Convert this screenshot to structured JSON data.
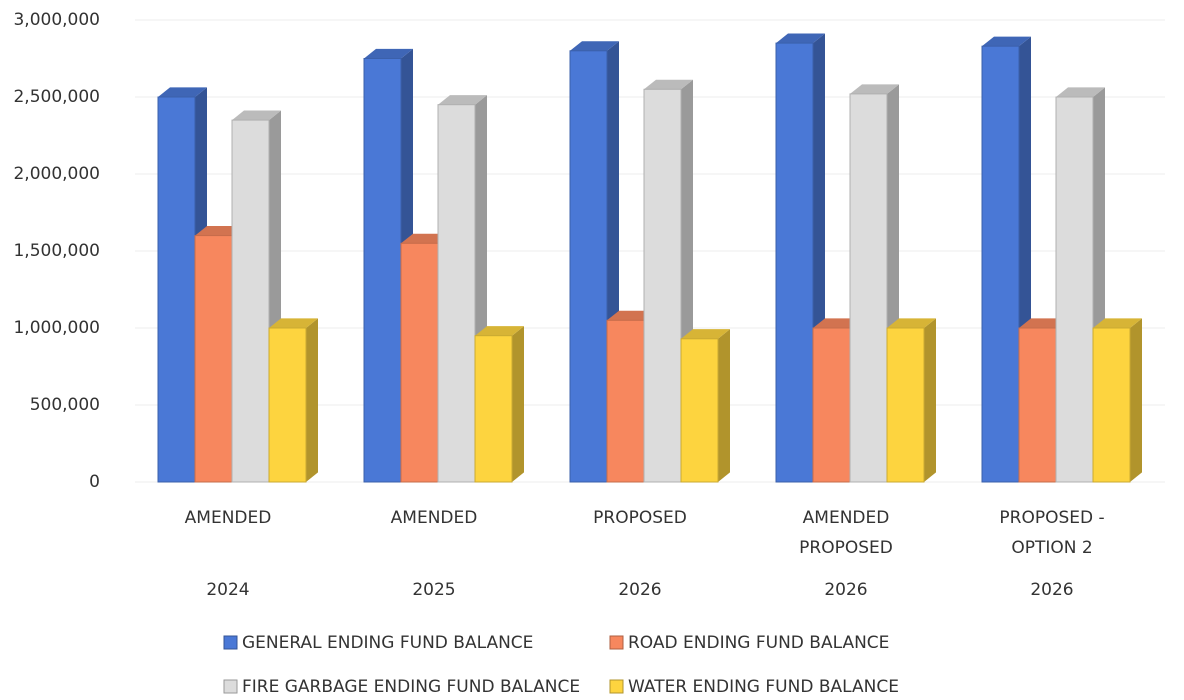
{
  "chart_data": {
    "type": "bar3d",
    "categories": [
      {
        "label": [
          "AMENDED"
        ],
        "group": "2024"
      },
      {
        "label": [
          "AMENDED"
        ],
        "group": "2025"
      },
      {
        "label": [
          "PROPOSED"
        ],
        "group": "2026"
      },
      {
        "label": [
          "AMENDED",
          "PROPOSED"
        ],
        "group": "2026"
      },
      {
        "label": [
          "PROPOSED -",
          "OPTION 2"
        ],
        "group": "2026"
      }
    ],
    "series": [
      {
        "name": "GENERAL ENDING FUND BALANCE",
        "color": "#4a78d6",
        "values": [
          2500000,
          2750000,
          2800000,
          2850000,
          2830000
        ]
      },
      {
        "name": "ROAD ENDING FUND BALANCE",
        "color": "#f7875e",
        "values": [
          1600000,
          1550000,
          1050000,
          1000000,
          1000000
        ]
      },
      {
        "name": "FIRE GARBAGE ENDING FUND BALANCE",
        "color": "#dcdcdc",
        "values": [
          2350000,
          2450000,
          2550000,
          2520000,
          2500000
        ]
      },
      {
        "name": "WATER ENDING FUND BALANCE",
        "color": "#fdd43f",
        "values": [
          1000000,
          950000,
          930000,
          1000000,
          1000000
        ]
      }
    ],
    "ylim": [
      0,
      3000000
    ],
    "yticks": [
      0,
      {
        "value": 500000,
        "label": "500,000"
      },
      {
        "value": 1000000,
        "label": "1,000,000"
      },
      {
        "value": 1500000,
        "label": "1,500,000"
      },
      {
        "value": 2000000,
        "label": "2,000,000"
      },
      {
        "value": 2500000,
        "label": "2,500,000"
      },
      {
        "value": 3000000,
        "label": "3,000,000"
      }
    ],
    "grid": true,
    "legend": "bottom"
  }
}
